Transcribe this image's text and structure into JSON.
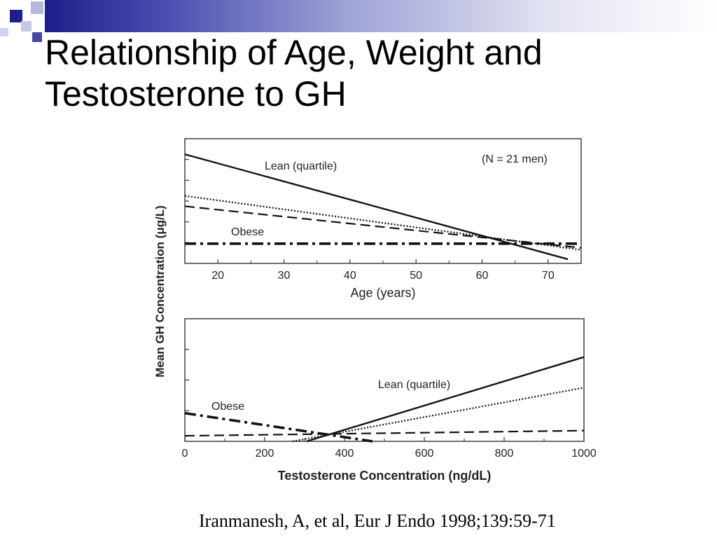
{
  "slide": {
    "title_lines": [
      "Relationship of Age, Weight and",
      "Testosterone to GH"
    ],
    "citation": "Iranmanesh, A, et al, Eur J Endo 1998;139:59-71"
  },
  "chart_data": [
    {
      "type": "line",
      "xlabel": "Age (years)",
      "ylabel": "Mean GH Concentration (μg/L)",
      "xlim": [
        15,
        75
      ],
      "ylim": [
        0,
        6
      ],
      "xticks": [
        20,
        30,
        40,
        50,
        60,
        70
      ],
      "yticks_count": 6,
      "annotations": [
        "(N = 21 men)",
        "Lean (quartile)",
        "Obese"
      ],
      "series": [
        {
          "name": "Lean (quartile)",
          "style": "solid",
          "x": [
            15,
            73
          ],
          "y": [
            5.25,
            0.2
          ]
        },
        {
          "name": "",
          "style": "dotted",
          "x": [
            15,
            75
          ],
          "y": [
            3.25,
            0.65
          ]
        },
        {
          "name": "",
          "style": "dashed",
          "x": [
            15,
            75
          ],
          "y": [
            2.75,
            0.75
          ]
        },
        {
          "name": "Obese",
          "style": "dashdot",
          "x": [
            15,
            75
          ],
          "y": [
            0.95,
            0.95
          ]
        }
      ]
    },
    {
      "type": "line",
      "xlabel": "Testosterone Concentration (ng/dL)",
      "ylabel": "Mean GH Concentration (μg/L)",
      "xlim": [
        0,
        1000
      ],
      "ylim": [
        0,
        4
      ],
      "xticks": [
        0,
        200,
        400,
        600,
        800,
        1000
      ],
      "yticks_count": 4,
      "annotations": [
        "Lean (quartile)",
        "Obese"
      ],
      "series": [
        {
          "name": "Lean (quartile)",
          "style": "solid",
          "x": [
            305,
            1000
          ],
          "y": [
            0.0,
            2.75
          ]
        },
        {
          "name": "",
          "style": "dotted",
          "x": [
            270,
            1000
          ],
          "y": [
            0.0,
            1.75
          ]
        },
        {
          "name": "",
          "style": "dashed",
          "x": [
            0,
            1000
          ],
          "y": [
            0.18,
            0.35
          ]
        },
        {
          "name": "Obese",
          "style": "dashdot",
          "x": [
            0,
            470
          ],
          "y": [
            0.92,
            0.0
          ]
        }
      ]
    }
  ]
}
